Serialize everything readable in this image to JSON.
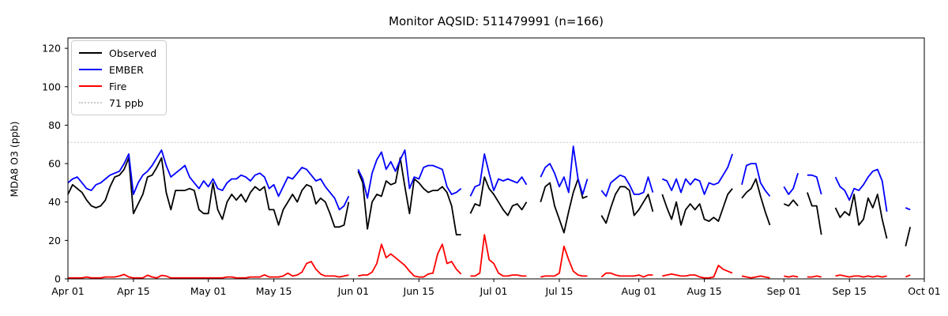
{
  "title": "Monitor AQSID: 511479991 (n=166)",
  "ylabel": "MDA8 O3 (ppb)",
  "legend": {
    "items": [
      {
        "label": "Observed",
        "color": "#000000",
        "style": "solid"
      },
      {
        "label": "EMBER",
        "color": "#0000ff",
        "style": "solid"
      },
      {
        "label": "Fire",
        "color": "#ff0000",
        "style": "solid"
      },
      {
        "label": "71 ppb",
        "color": "#c9c9c9",
        "style": "dotted"
      }
    ]
  },
  "chart_data": {
    "type": "line",
    "title": "Monitor AQSID: 511479991 (n=166)",
    "xlabel": "",
    "ylabel": "MDA8 O3 (ppb)",
    "x_start_date": "Apr 01",
    "x_end_date": "Oct 01",
    "days_span": 183,
    "x_tick_days": [
      0,
      14,
      30,
      44,
      61,
      75,
      91,
      105,
      122,
      136,
      153,
      167,
      183
    ],
    "x_tick_labels": [
      "Apr 01",
      "Apr 15",
      "May 01",
      "May 15",
      "Jun 01",
      "Jun 15",
      "Jul 01",
      "Jul 15",
      "Aug 01",
      "Aug 15",
      "Sep 01",
      "Sep 15",
      "Oct 01"
    ],
    "y_ticks": [
      0,
      20,
      40,
      60,
      80,
      100,
      120
    ],
    "ylim": [
      0,
      125.4
    ],
    "grid": false,
    "legend_position": "upper left",
    "threshold": {
      "value": 71,
      "label": "71 ppb",
      "color": "#c9c9c9",
      "style": "dotted"
    },
    "series": [
      {
        "name": "Observed",
        "color": "#000000",
        "values": [
          44,
          49,
          47,
          45,
          41,
          38,
          37,
          38,
          41,
          48,
          53,
          54,
          57,
          63,
          34,
          39,
          44,
          53,
          54,
          58,
          63,
          45,
          36,
          46,
          46,
          46,
          47,
          46,
          36,
          34,
          34,
          50,
          36,
          31,
          40,
          44,
          41,
          44,
          40,
          45,
          48,
          46,
          48,
          36,
          36,
          28,
          36,
          40,
          44,
          40,
          46,
          49,
          48,
          39,
          42,
          40,
          34,
          27,
          27,
          28,
          40,
          null,
          56,
          50,
          26,
          40,
          44,
          43,
          51,
          49,
          50,
          63,
          48,
          34,
          52,
          50,
          47,
          45,
          46,
          46,
          48,
          45,
          38,
          23,
          23,
          null,
          34,
          39,
          38,
          53,
          47,
          44,
          40,
          36,
          33,
          38,
          39,
          36,
          40,
          null,
          null,
          40,
          48,
          50,
          38,
          31,
          24,
          35,
          45,
          52,
          42,
          43,
          null,
          null,
          33,
          29,
          37,
          44,
          48,
          48,
          46,
          33,
          36,
          40,
          44,
          35,
          null,
          44,
          37,
          31,
          40,
          28,
          36,
          39,
          36,
          39,
          31,
          30,
          32,
          30,
          37,
          44,
          47,
          null,
          42,
          45,
          47,
          52,
          43,
          35,
          28,
          null,
          null,
          39,
          38,
          41,
          38,
          null,
          45,
          38,
          38,
          23,
          null,
          null,
          37,
          32,
          35,
          33,
          44,
          28,
          31,
          42,
          37,
          44,
          31,
          21,
          null,
          null,
          null,
          17,
          27,
          null,
          null
        ]
      },
      {
        "name": "EMBER",
        "color": "#0000ff",
        "values": [
          50,
          52,
          53,
          50,
          47,
          46,
          49,
          50,
          52,
          54,
          55,
          56,
          60,
          65,
          44,
          50,
          54,
          56,
          59,
          63,
          67,
          59,
          53,
          55,
          57,
          59,
          53,
          50,
          47,
          51,
          48,
          52,
          47,
          46,
          50,
          52,
          52,
          54,
          53,
          51,
          54,
          55,
          53,
          47,
          49,
          43,
          48,
          53,
          52,
          55,
          58,
          57,
          54,
          51,
          52,
          48,
          45,
          42,
          36,
          38,
          43,
          null,
          57,
          52,
          42,
          55,
          62,
          66,
          57,
          61,
          56,
          62,
          67,
          47,
          53,
          52,
          58,
          59,
          59,
          58,
          57,
          48,
          44,
          45,
          47,
          null,
          43,
          48,
          49,
          65,
          55,
          46,
          52,
          51,
          52,
          51,
          50,
          53,
          49,
          null,
          null,
          53,
          58,
          60,
          55,
          48,
          53,
          45,
          69,
          52,
          44,
          52,
          null,
          null,
          46,
          43,
          50,
          52,
          54,
          53,
          49,
          44,
          44,
          45,
          53,
          45,
          null,
          52,
          51,
          46,
          52,
          45,
          52,
          49,
          52,
          51,
          44,
          50,
          49,
          50,
          54,
          58,
          65,
          null,
          49,
          59,
          60,
          60,
          50,
          46,
          43,
          null,
          null,
          48,
          44,
          47,
          55,
          null,
          54,
          54,
          53,
          44,
          null,
          null,
          53,
          48,
          46,
          41,
          47,
          46,
          49,
          53,
          56,
          57,
          51,
          35,
          null,
          null,
          null,
          37,
          36,
          null,
          null
        ]
      },
      {
        "name": "Fire",
        "color": "#ff0000",
        "values": [
          0.5,
          0.5,
          0.5,
          0.5,
          1,
          0.5,
          0.5,
          0.5,
          1,
          1,
          1,
          1.5,
          2.3,
          1,
          0.5,
          0.5,
          0.5,
          1.9,
          1,
          0.5,
          1.8,
          1.5,
          0.5,
          0.5,
          0.5,
          0.5,
          0.5,
          0.5,
          0.5,
          0.5,
          0.5,
          0.5,
          0.5,
          0.5,
          1,
          1,
          0.5,
          0.5,
          0.5,
          1,
          1,
          1,
          2.1,
          1,
          1,
          1,
          1.5,
          3,
          1.5,
          2,
          3.5,
          8,
          9,
          5,
          2.5,
          1.5,
          1.5,
          1.5,
          1,
          1.5,
          2,
          null,
          1.5,
          2,
          2,
          3.5,
          8,
          18,
          11,
          13,
          11,
          9,
          7,
          4,
          1.5,
          1,
          1,
          2.5,
          3,
          13,
          18,
          8,
          9,
          5,
          2.5,
          null,
          1.5,
          1.5,
          3,
          23,
          10,
          8,
          3,
          1.5,
          1.5,
          2,
          2,
          1.5,
          1.5,
          null,
          null,
          1,
          1.5,
          1.5,
          1.5,
          3,
          17,
          10,
          4,
          2,
          1.5,
          1.5,
          null,
          null,
          1,
          3,
          3,
          2,
          1.5,
          1.5,
          1.5,
          1.5,
          2,
          1,
          2,
          2,
          null,
          1.5,
          2,
          2.5,
          2,
          1.5,
          1.5,
          2,
          2,
          1,
          0.5,
          0.5,
          1,
          7,
          5,
          4,
          3,
          null,
          1.5,
          1,
          0.5,
          1,
          1.5,
          1,
          0.5,
          null,
          null,
          1.5,
          1,
          1.5,
          1,
          null,
          1,
          1,
          1.5,
          1,
          null,
          null,
          1.5,
          2,
          1.5,
          1,
          1.5,
          1.5,
          1,
          1.5,
          1,
          1.5,
          1,
          1.5,
          null,
          null,
          null,
          1,
          2,
          null,
          null
        ]
      }
    ]
  }
}
